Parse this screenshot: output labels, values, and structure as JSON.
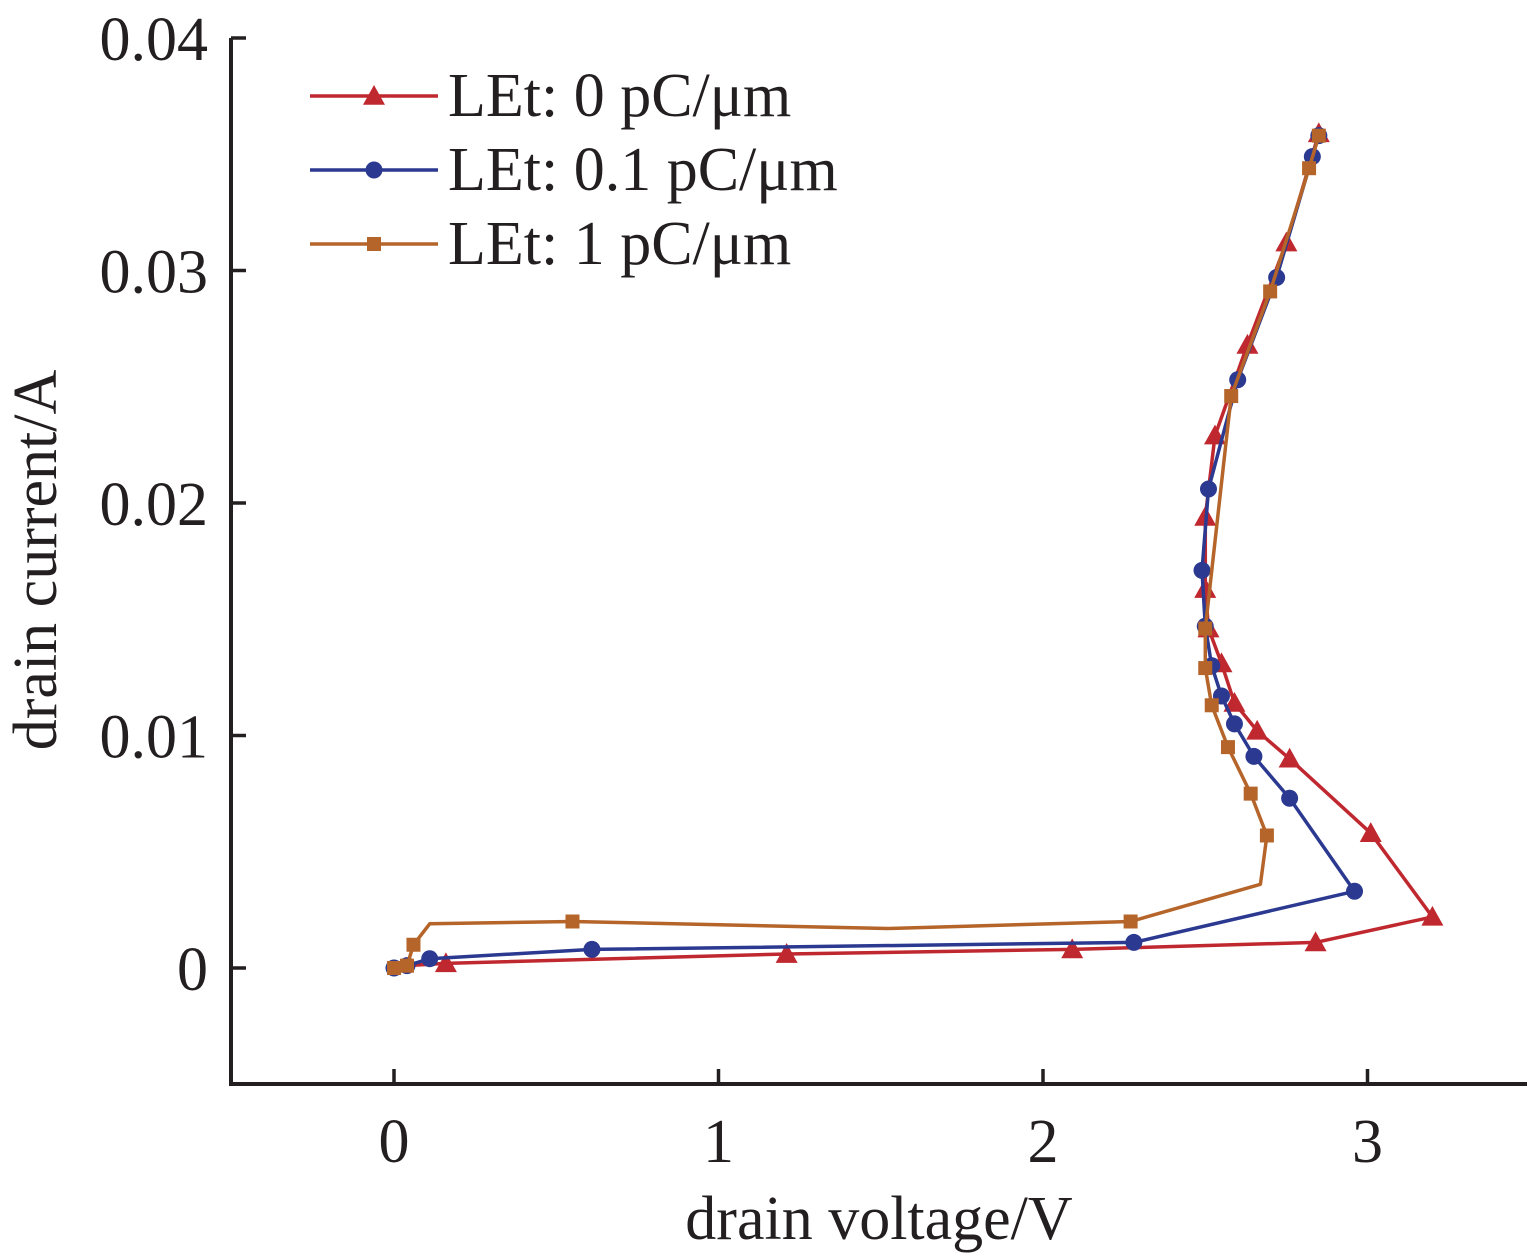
{
  "chart_data": {
    "type": "line",
    "xlabel": "drain voltage/V",
    "ylabel": "drain current/A",
    "xlim": [
      -0.5,
      3.5
    ],
    "ylim": [
      -0.005,
      0.04
    ],
    "x_ticks": [
      0,
      1,
      2,
      3
    ],
    "x_tick_labels": [
      "0",
      "1",
      "2",
      "3"
    ],
    "y_ticks": [
      0,
      0.01,
      0.02,
      0.03,
      0.04
    ],
    "y_tick_labels": [
      "0",
      "0.01",
      "0.02",
      "0.03",
      "0.04"
    ],
    "grid": false,
    "legend_position": "top-left",
    "series": [
      {
        "name": "LEt: 0 pC/μm",
        "color": "#c0282f",
        "marker": "triangle",
        "x": [
          0.0,
          0.03,
          0.16,
          1.21,
          2.09,
          2.84,
          3.2,
          3.01,
          2.76,
          2.66,
          2.59,
          2.55,
          2.51,
          2.5,
          2.5,
          2.53,
          2.63,
          2.75,
          2.85
        ],
        "y": [
          0.0,
          0.0001,
          0.0002,
          0.0006,
          0.0008,
          0.0011,
          0.0022,
          0.0058,
          0.009,
          0.0102,
          0.0114,
          0.0131,
          0.0146,
          0.0163,
          0.0194,
          0.0229,
          0.0268,
          0.0312,
          0.0359
        ],
        "marker_x": [
          0.16,
          1.21,
          2.09,
          2.84,
          3.2,
          3.01,
          2.76,
          2.66,
          2.59,
          2.55,
          2.51,
          2.5,
          2.5,
          2.53,
          2.63,
          2.75,
          2.85
        ],
        "marker_y": [
          0.0002,
          0.0006,
          0.0008,
          0.0011,
          0.0022,
          0.0058,
          0.009,
          0.0102,
          0.0114,
          0.0131,
          0.0146,
          0.0163,
          0.0194,
          0.0229,
          0.0268,
          0.0312,
          0.0359
        ]
      },
      {
        "name": "LEt: 0.1 pC/μm",
        "color": "#2b3990",
        "marker": "circle",
        "x": [
          0.0,
          0.04,
          0.11,
          0.61,
          2.28,
          2.96,
          2.76,
          2.65,
          2.59,
          2.55,
          2.52,
          2.5,
          2.49,
          2.51,
          2.6,
          2.72,
          2.83,
          2.85
        ],
        "y": [
          0.0,
          0.0001,
          0.0004,
          0.0008,
          0.0011,
          0.0033,
          0.0073,
          0.0091,
          0.0105,
          0.0117,
          0.013,
          0.0147,
          0.0171,
          0.0206,
          0.0253,
          0.0297,
          0.0349,
          0.0358
        ],
        "marker_x": [
          0.0,
          0.04,
          0.11,
          0.61,
          2.28,
          2.96,
          2.76,
          2.65,
          2.59,
          2.55,
          2.52,
          2.5,
          2.49,
          2.51,
          2.6,
          2.72,
          2.83,
          2.85
        ],
        "marker_y": [
          0.0,
          0.0001,
          0.0004,
          0.0008,
          0.0011,
          0.0033,
          0.0073,
          0.0091,
          0.0105,
          0.0117,
          0.013,
          0.0147,
          0.0171,
          0.0206,
          0.0253,
          0.0297,
          0.0349,
          0.0358
        ]
      },
      {
        "name": "LEt: 1 pC/μm",
        "color": "#b5652a",
        "marker": "square",
        "x": [
          0.0,
          0.04,
          0.06,
          0.11,
          0.55,
          1.52,
          2.27,
          2.67,
          2.69,
          2.64,
          2.57,
          2.52,
          2.5,
          2.5,
          2.58,
          2.7,
          2.82,
          2.85
        ],
        "y": [
          0.0,
          0.0001,
          0.001,
          0.0019,
          0.002,
          0.0017,
          0.002,
          0.0036,
          0.0057,
          0.0075,
          0.0095,
          0.0113,
          0.0129,
          0.0146,
          0.0246,
          0.0291,
          0.0344,
          0.0358
        ],
        "marker_x": [
          0.0,
          0.04,
          0.06,
          0.55,
          2.27,
          2.69,
          2.64,
          2.57,
          2.52,
          2.5,
          2.5,
          2.58,
          2.7,
          2.82,
          2.85
        ],
        "marker_y": [
          0.0,
          0.0001,
          0.001,
          0.002,
          0.002,
          0.0057,
          0.0075,
          0.0095,
          0.0113,
          0.0129,
          0.0146,
          0.0246,
          0.0291,
          0.0344,
          0.0358
        ]
      }
    ]
  }
}
